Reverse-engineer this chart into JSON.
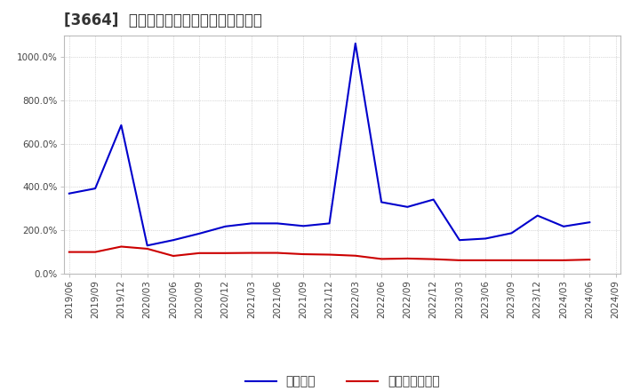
{
  "title": "[3664]  固定比率、固定長期適合率の推移",
  "fixed_ratio": {
    "dates": [
      "2019/06",
      "2019/09",
      "2019/12",
      "2020/03",
      "2020/06",
      "2020/09",
      "2020/12",
      "2021/03",
      "2021/06",
      "2021/09",
      "2021/12",
      "2022/03",
      "2022/06",
      "2022/09",
      "2022/12",
      "2023/03",
      "2023/06",
      "2023/09",
      "2023/12",
      "2024/03",
      "2024/06"
    ],
    "values": [
      370,
      393,
      685,
      130,
      155,
      185,
      218,
      232,
      232,
      220,
      232,
      1062,
      330,
      308,
      342,
      155,
      162,
      187,
      268,
      218,
      237
    ],
    "color": "#0000cc",
    "label": "固定比率",
    "linewidth": 1.5
  },
  "long_term_ratio": {
    "dates": [
      "2019/06",
      "2019/09",
      "2019/12",
      "2020/03",
      "2020/06",
      "2020/09",
      "2020/12",
      "2021/03",
      "2021/06",
      "2021/09",
      "2021/12",
      "2022/03",
      "2022/06",
      "2022/09",
      "2022/12",
      "2023/03",
      "2023/06",
      "2023/09",
      "2023/12",
      "2024/03",
      "2024/06"
    ],
    "values": [
      100,
      100,
      125,
      115,
      82,
      95,
      95,
      96,
      96,
      90,
      88,
      83,
      68,
      70,
      67,
      62,
      62,
      62,
      62,
      62,
      65
    ],
    "color": "#cc0000",
    "label": "固定長期適合率",
    "linewidth": 1.5
  },
  "xticks": [
    "2019/06",
    "2019/09",
    "2019/12",
    "2020/03",
    "2020/06",
    "2020/09",
    "2020/12",
    "2021/03",
    "2021/06",
    "2021/09",
    "2021/12",
    "2022/03",
    "2022/06",
    "2022/09",
    "2022/12",
    "2023/03",
    "2023/06",
    "2023/09",
    "2023/12",
    "2024/03",
    "2024/06",
    "2024/09"
  ],
  "ylim": [
    0,
    1100
  ],
  "yticks": [
    0,
    200,
    400,
    600,
    800,
    1000
  ],
  "ytick_labels": [
    "0.0%",
    "200.0%",
    "400.0%",
    "600.0%",
    "800.0%",
    "1000.0%"
  ],
  "background_color": "#ffffff",
  "grid_color": "#999999",
  "title_fontsize": 12,
  "tick_fontsize": 7.5,
  "legend_fontsize": 10,
  "title_color": "#333333"
}
